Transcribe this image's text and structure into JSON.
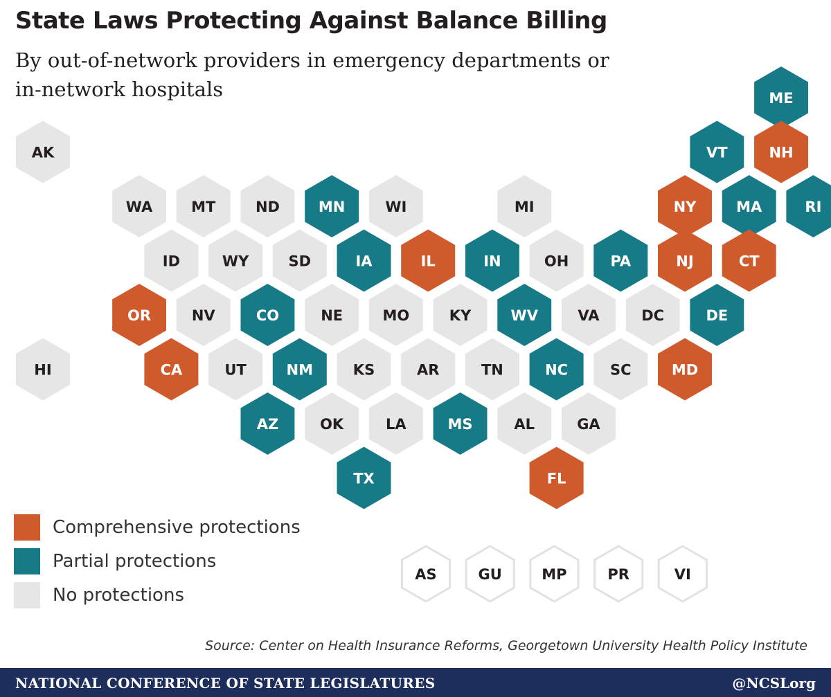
{
  "header": {
    "title": "State Laws Protecting Against Balance Billing",
    "subtitle": "By out-of-network providers in emergency departments or in-network hospitals"
  },
  "colors": {
    "comprehensive": "#cf5a2c",
    "partial": "#177a87",
    "none": "#e6e6e6",
    "label_dark": "#231f20",
    "label_light": "#ffffff",
    "territory_border": "#e2e2e2"
  },
  "legend": {
    "items": [
      {
        "category": "comprehensive",
        "label": "Comprehensive protections"
      },
      {
        "category": "partial",
        "label": "Partial protections"
      },
      {
        "category": "none",
        "label": "No protections"
      }
    ]
  },
  "map": {
    "states": [
      {
        "abbr": "ME",
        "category": "partial",
        "row": 0,
        "col": 11.5
      },
      {
        "abbr": "VT",
        "category": "partial",
        "row": 1,
        "col": 10.5
      },
      {
        "abbr": "NH",
        "category": "comprehensive",
        "row": 1,
        "col": 11.5
      },
      {
        "abbr": "WA",
        "category": "none",
        "row": 2,
        "col": 1.5
      },
      {
        "abbr": "MT",
        "category": "none",
        "row": 2,
        "col": 2.5
      },
      {
        "abbr": "ND",
        "category": "none",
        "row": 2,
        "col": 3.5
      },
      {
        "abbr": "MN",
        "category": "partial",
        "row": 2,
        "col": 4.5
      },
      {
        "abbr": "WI",
        "category": "none",
        "row": 2,
        "col": 5.5
      },
      {
        "abbr": "MI",
        "category": "none",
        "row": 2,
        "col": 7.5
      },
      {
        "abbr": "NY",
        "category": "comprehensive",
        "row": 2,
        "col": 10
      },
      {
        "abbr": "MA",
        "category": "partial",
        "row": 2,
        "col": 11
      },
      {
        "abbr": "RI",
        "category": "partial",
        "row": 2,
        "col": 12
      },
      {
        "abbr": "ID",
        "category": "none",
        "row": 3,
        "col": 2
      },
      {
        "abbr": "WY",
        "category": "none",
        "row": 3,
        "col": 3
      },
      {
        "abbr": "SD",
        "category": "none",
        "row": 3,
        "col": 4
      },
      {
        "abbr": "IA",
        "category": "partial",
        "row": 3,
        "col": 5
      },
      {
        "abbr": "IL",
        "category": "comprehensive",
        "row": 3,
        "col": 6
      },
      {
        "abbr": "IN",
        "category": "partial",
        "row": 3,
        "col": 7
      },
      {
        "abbr": "OH",
        "category": "none",
        "row": 3,
        "col": 8
      },
      {
        "abbr": "PA",
        "category": "partial",
        "row": 3,
        "col": 9
      },
      {
        "abbr": "NJ",
        "category": "comprehensive",
        "row": 3,
        "col": 10
      },
      {
        "abbr": "CT",
        "category": "comprehensive",
        "row": 3,
        "col": 11
      },
      {
        "abbr": "OR",
        "category": "comprehensive",
        "row": 4,
        "col": 1.5
      },
      {
        "abbr": "NV",
        "category": "none",
        "row": 4,
        "col": 2.5
      },
      {
        "abbr": "CO",
        "category": "partial",
        "row": 4,
        "col": 3.5
      },
      {
        "abbr": "NE",
        "category": "none",
        "row": 4,
        "col": 4.5
      },
      {
        "abbr": "MO",
        "category": "none",
        "row": 4,
        "col": 5.5
      },
      {
        "abbr": "KY",
        "category": "none",
        "row": 4,
        "col": 6.5
      },
      {
        "abbr": "WV",
        "category": "partial",
        "row": 4,
        "col": 7.5
      },
      {
        "abbr": "VA",
        "category": "none",
        "row": 4,
        "col": 8.5
      },
      {
        "abbr": "DC",
        "category": "none",
        "row": 4,
        "col": 9.5
      },
      {
        "abbr": "DE",
        "category": "partial",
        "row": 4,
        "col": 10.5
      },
      {
        "abbr": "CA",
        "category": "comprehensive",
        "row": 5,
        "col": 2
      },
      {
        "abbr": "UT",
        "category": "none",
        "row": 5,
        "col": 3
      },
      {
        "abbr": "NM",
        "category": "partial",
        "row": 5,
        "col": 4
      },
      {
        "abbr": "KS",
        "category": "none",
        "row": 5,
        "col": 5
      },
      {
        "abbr": "AR",
        "category": "none",
        "row": 5,
        "col": 6
      },
      {
        "abbr": "TN",
        "category": "none",
        "row": 5,
        "col": 7
      },
      {
        "abbr": "NC",
        "category": "partial",
        "row": 5,
        "col": 8
      },
      {
        "abbr": "SC",
        "category": "none",
        "row": 5,
        "col": 9
      },
      {
        "abbr": "MD",
        "category": "comprehensive",
        "row": 5,
        "col": 10
      },
      {
        "abbr": "AZ",
        "category": "partial",
        "row": 6,
        "col": 3.5
      },
      {
        "abbr": "OK",
        "category": "none",
        "row": 6,
        "col": 4.5
      },
      {
        "abbr": "LA",
        "category": "none",
        "row": 6,
        "col": 5.5
      },
      {
        "abbr": "MS",
        "category": "partial",
        "row": 6,
        "col": 6.5
      },
      {
        "abbr": "AL",
        "category": "none",
        "row": 6,
        "col": 7.5
      },
      {
        "abbr": "GA",
        "category": "none",
        "row": 6,
        "col": 8.5
      },
      {
        "abbr": "TX",
        "category": "partial",
        "row": 7,
        "col": 5
      },
      {
        "abbr": "FL",
        "category": "comprehensive",
        "row": 7,
        "col": 8
      },
      {
        "abbr": "AK",
        "category": "none",
        "row": 1,
        "col": 0
      },
      {
        "abbr": "HI",
        "category": "none",
        "row": 5,
        "col": 0
      }
    ],
    "territories": [
      {
        "abbr": "AS",
        "slot": 0
      },
      {
        "abbr": "GU",
        "slot": 1
      },
      {
        "abbr": "MP",
        "slot": 2
      },
      {
        "abbr": "PR",
        "slot": 3
      },
      {
        "abbr": "VI",
        "slot": 4
      }
    ]
  },
  "source": "Source: Center on Health Insurance Reforms, Georgetown University Health Policy Institute",
  "footer": {
    "organization": "NATIONAL CONFERENCE OF STATE LEGISLATURES",
    "handle": "@NCSLorg"
  }
}
